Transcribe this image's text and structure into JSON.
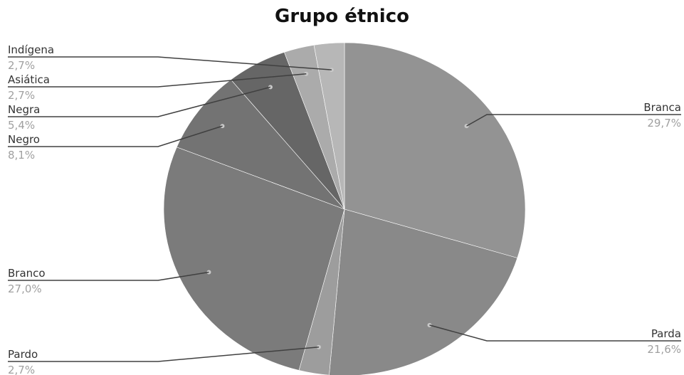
{
  "chart_data": {
    "type": "pie",
    "title": "Grupo étnico",
    "slices": [
      {
        "name": "Branca",
        "value": 29.7,
        "label": "29,7%",
        "color": "#939393"
      },
      {
        "name": "Parda",
        "value": 21.6,
        "label": "21,6%",
        "color": "#898989"
      },
      {
        "name": "Pardo",
        "value": 2.7,
        "label": "2,7%",
        "color": "#9d9d9d"
      },
      {
        "name": "Branco",
        "value": 27.0,
        "label": "27,0%",
        "color": "#7b7b7b"
      },
      {
        "name": "Negro",
        "value": 8.1,
        "label": "8,1%",
        "color": "#737373"
      },
      {
        "name": "Negra",
        "value": 5.4,
        "label": "5,4%",
        "color": "#666666"
      },
      {
        "name": "Asiática",
        "value": 2.7,
        "label": "2,7%",
        "color": "#ababab"
      },
      {
        "name": "Indígena",
        "value": 2.7,
        "label": "2,7%",
        "color": "#b7b7b7"
      }
    ]
  }
}
